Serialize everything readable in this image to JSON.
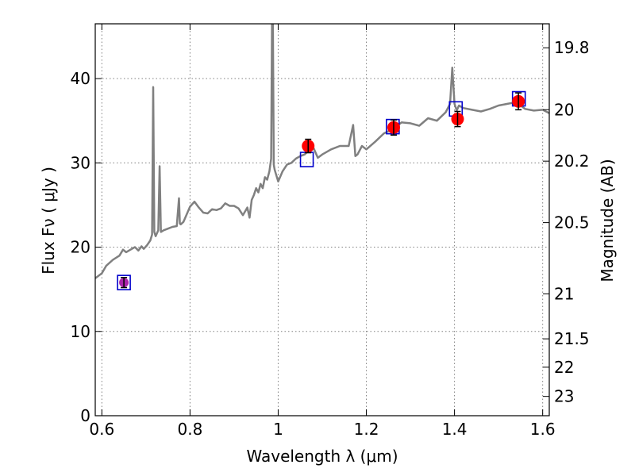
{
  "chart_data": {
    "type": "line",
    "xlabel": "Wavelength  λ (μm)",
    "ylabel": "Flux  Fν  ( μJy )",
    "y2label": "Magnitude (AB)",
    "xlim": [
      0.585,
      1.615
    ],
    "ylim": [
      0,
      46.5
    ],
    "grid": true,
    "x_ticks": [
      0.6,
      0.8,
      1.0,
      1.2,
      1.4,
      1.6
    ],
    "x_tick_labels": [
      "0.6",
      "0.8",
      "1",
      "1.2",
      "1.4",
      "1.6"
    ],
    "y_ticks": [
      0,
      10,
      20,
      30,
      40
    ],
    "y_tick_labels": [
      "0",
      "10",
      "20",
      "30",
      "40"
    ],
    "y2_ticks": [
      19.8,
      20,
      20.2,
      20.5,
      21,
      21.5,
      22,
      23
    ],
    "y2_tick_labels": [
      "19.8",
      "20",
      "20.2",
      "20.5",
      "21",
      "21.5",
      "22",
      "23"
    ],
    "colors": {
      "spectrum": "#808080",
      "photometry": "#ff0000",
      "photometry_first": "#aa22aa",
      "model_box": "#0000cc",
      "errorbar": "#000000",
      "grid": "#808080"
    },
    "series": [
      {
        "kind": "spectrum",
        "x": [
          0.585,
          0.6,
          0.61,
          0.625,
          0.64,
          0.648,
          0.655,
          0.668,
          0.675,
          0.683,
          0.69,
          0.695,
          0.702,
          0.71,
          0.714,
          0.7165,
          0.719,
          0.722,
          0.728,
          0.731,
          0.734,
          0.74,
          0.75,
          0.76,
          0.77,
          0.775,
          0.777,
          0.779,
          0.785,
          0.8,
          0.81,
          0.82,
          0.83,
          0.84,
          0.85,
          0.86,
          0.87,
          0.88,
          0.89,
          0.9,
          0.91,
          0.92,
          0.93,
          0.935,
          0.94,
          0.945,
          0.95,
          0.955,
          0.96,
          0.965,
          0.97,
          0.975,
          0.98,
          0.984,
          0.986,
          0.988,
          0.99,
          0.992,
          0.996,
          1.0,
          1.01,
          1.02,
          1.03,
          1.04,
          1.05,
          1.06,
          1.07,
          1.08,
          1.09,
          1.1,
          1.12,
          1.14,
          1.16,
          1.17,
          1.175,
          1.18,
          1.19,
          1.2,
          1.22,
          1.24,
          1.26,
          1.28,
          1.3,
          1.32,
          1.34,
          1.36,
          1.38,
          1.39,
          1.395,
          1.4,
          1.405,
          1.41,
          1.42,
          1.44,
          1.46,
          1.48,
          1.5,
          1.52,
          1.54,
          1.56,
          1.58,
          1.6,
          1.615
        ],
        "y": [
          16.3,
          16.9,
          17.8,
          18.5,
          19.0,
          19.7,
          19.4,
          19.8,
          20.0,
          19.6,
          20.1,
          19.8,
          20.2,
          20.8,
          21.5,
          39.0,
          21.8,
          21.3,
          22.0,
          29.6,
          21.8,
          22.0,
          22.2,
          22.4,
          22.5,
          25.8,
          22.8,
          22.7,
          23.0,
          24.8,
          25.4,
          24.7,
          24.1,
          24.0,
          24.5,
          24.4,
          24.6,
          25.2,
          24.9,
          24.9,
          24.6,
          23.8,
          24.7,
          23.5,
          25.6,
          26.2,
          27.0,
          26.5,
          27.5,
          27.0,
          28.3,
          28.0,
          29.0,
          30.5,
          46.5,
          46.5,
          29.8,
          29.2,
          28.5,
          27.8,
          29.0,
          29.8,
          30.0,
          30.5,
          30.8,
          31.0,
          31.5,
          31.8,
          30.6,
          31.0,
          31.6,
          32.0,
          32.0,
          34.5,
          30.8,
          31.0,
          32.0,
          31.6,
          32.5,
          33.5,
          34.0,
          34.8,
          34.7,
          34.4,
          35.3,
          35.0,
          36.0,
          37.0,
          41.3,
          37.0,
          36.2,
          36.8,
          36.5,
          36.3,
          36.1,
          36.4,
          36.8,
          37.0,
          37.2,
          36.4,
          36.2,
          36.3,
          35.9
        ]
      },
      {
        "kind": "photometry",
        "x": [
          0.65,
          1.068,
          1.262,
          1.407,
          1.545
        ],
        "y": [
          15.8,
          32.0,
          34.2,
          35.2,
          37.3
        ],
        "yerr": [
          0.6,
          0.8,
          0.9,
          0.9,
          1.0
        ]
      },
      {
        "kind": "model-boxes",
        "x": [
          0.65,
          1.065,
          1.26,
          1.403,
          1.546
        ],
        "y": [
          15.8,
          30.4,
          34.3,
          36.4,
          37.6
        ]
      }
    ]
  }
}
